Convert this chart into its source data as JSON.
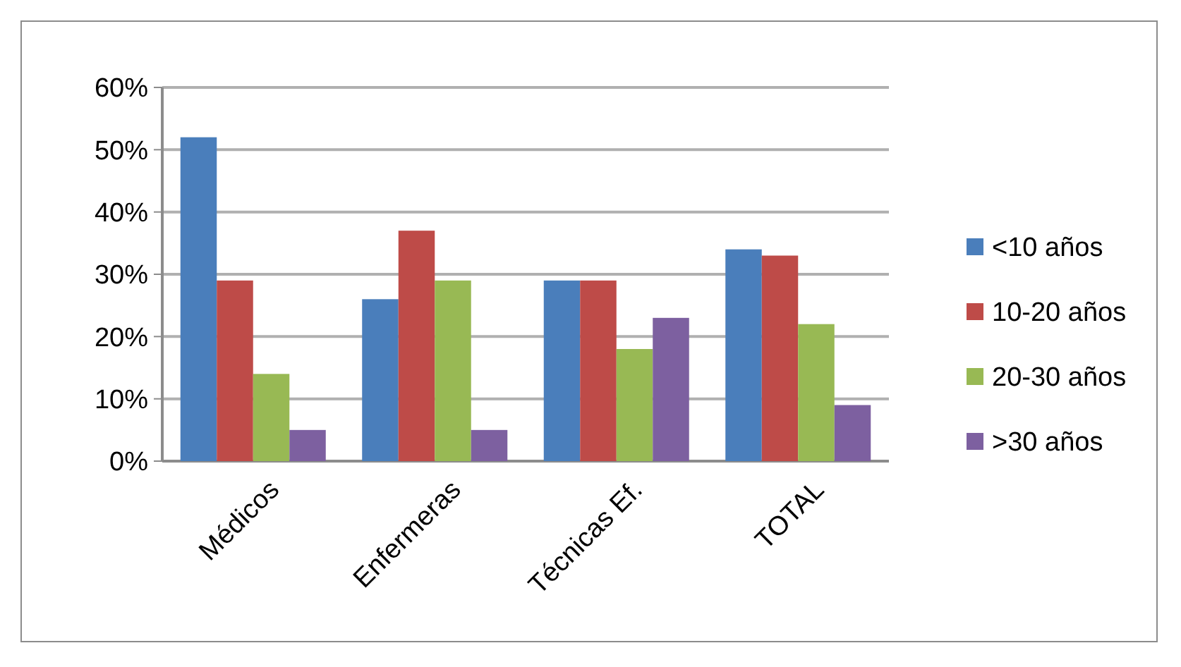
{
  "chart_data": {
    "type": "bar",
    "categories": [
      "Médicos",
      "Enfermeras",
      "Técnicas Ef.",
      "TOTAL"
    ],
    "series": [
      {
        "name": "<10 años",
        "color": "#4a7ebb",
        "values": [
          0.52,
          0.26,
          0.29,
          0.34
        ]
      },
      {
        "name": "10-20 años",
        "color": "#be4b48",
        "values": [
          0.29,
          0.37,
          0.29,
          0.33
        ]
      },
      {
        "name": "20-30 años",
        "color": "#98b954",
        "values": [
          0.14,
          0.29,
          0.18,
          0.22
        ]
      },
      {
        "name": ">30 años",
        "color": "#7d60a0",
        "values": [
          0.05,
          0.05,
          0.23,
          0.09
        ]
      }
    ],
    "ylim": [
      0,
      0.6
    ],
    "yticks": [
      {
        "value": 0,
        "label": "0%"
      },
      {
        "value": 0.1,
        "label": "10%"
      },
      {
        "value": 0.2,
        "label": "20%"
      },
      {
        "value": 0.3,
        "label": "30%"
      },
      {
        "value": 0.4,
        "label": "40%"
      },
      {
        "value": 0.5,
        "label": "50%"
      },
      {
        "value": 0.6,
        "label": "60%"
      }
    ],
    "grid": "y",
    "legend": "right"
  }
}
